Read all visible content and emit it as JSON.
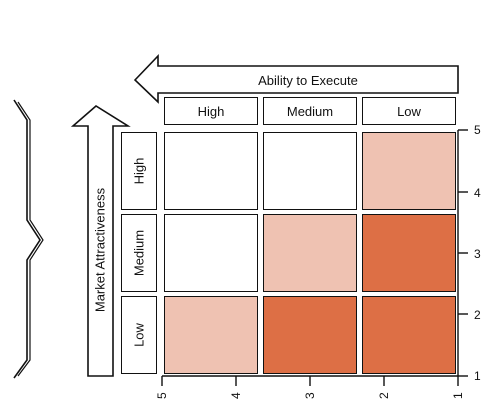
{
  "axes": {
    "x_title": "Ability to Execute",
    "y_title": "Market Attractiveness"
  },
  "columns": [
    {
      "label": "High"
    },
    {
      "label": "Medium"
    },
    {
      "label": "Low"
    }
  ],
  "rows": [
    {
      "label": "High"
    },
    {
      "label": "Medium"
    },
    {
      "label": "Low"
    }
  ],
  "y_ticks": [
    "5",
    "4",
    "3",
    "2",
    "1"
  ],
  "x_ticks": [
    "5",
    "4",
    "3",
    "2",
    "1"
  ],
  "colors": {
    "white": "#ffffff",
    "light": "#efc2b2",
    "dark": "#dd6f45"
  },
  "grid_fill": [
    [
      "white",
      "white",
      "light"
    ],
    [
      "white",
      "light",
      "dark"
    ],
    [
      "light",
      "dark",
      "dark"
    ]
  ]
}
